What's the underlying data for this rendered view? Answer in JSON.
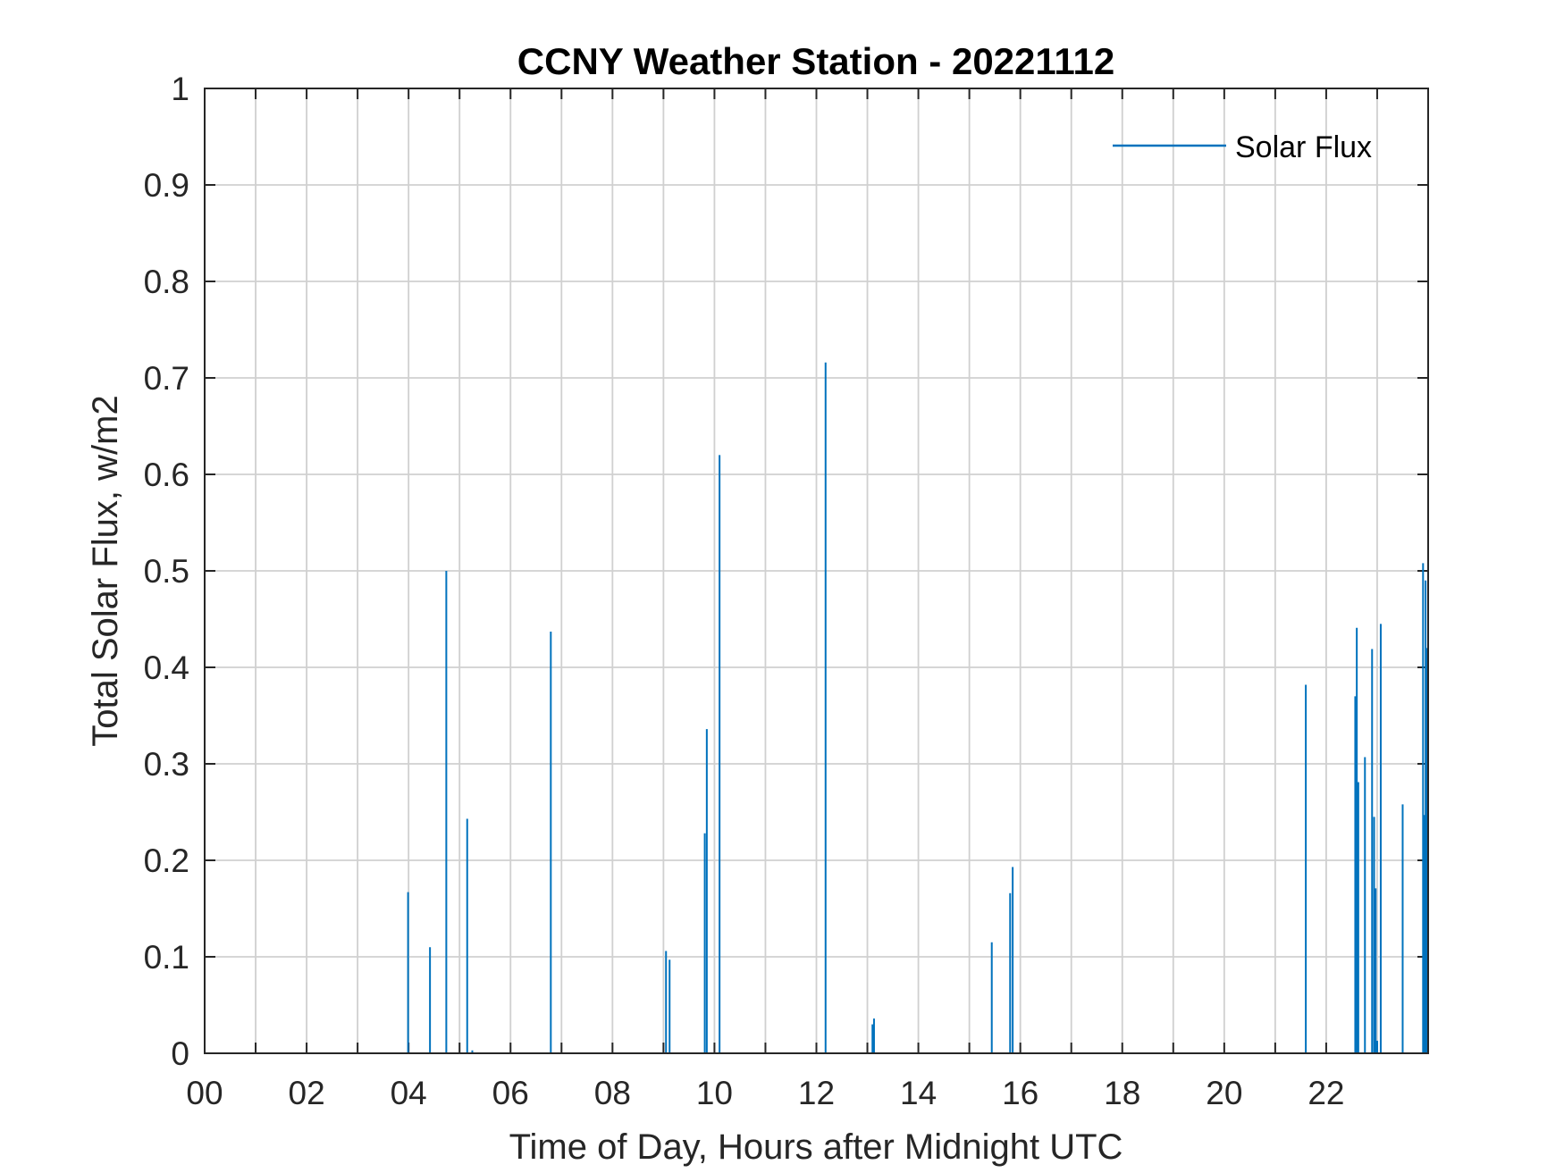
{
  "chart_data": {
    "type": "line",
    "title": "CCNY Weather Station - 20221112",
    "xlabel": "Time of Day, Hours after Midnight UTC",
    "ylabel": "Total Solar Flux, w/m2",
    "xlim": [
      0,
      24
    ],
    "ylim": [
      0,
      1
    ],
    "xticks": [
      0,
      2,
      4,
      6,
      8,
      10,
      12,
      14,
      16,
      18,
      20,
      22
    ],
    "xtick_labels": [
      "00",
      "02",
      "04",
      "06",
      "08",
      "10",
      "12",
      "14",
      "16",
      "18",
      "20",
      "22"
    ],
    "yticks": [
      0,
      0.1,
      0.2,
      0.3,
      0.4,
      0.5,
      0.6,
      0.7,
      0.8,
      0.9,
      1
    ],
    "ytick_labels": [
      "0",
      "0.1",
      "0.2",
      "0.3",
      "0.4",
      "0.5",
      "0.6",
      "0.7",
      "0.8",
      "0.9",
      "1"
    ],
    "grid": true,
    "legend_placement": "top-right",
    "series": [
      {
        "name": "Solar Flux",
        "color": "#0072BD",
        "spikes": [
          [
            3.99,
            0.167
          ],
          [
            4.42,
            0.11
          ],
          [
            4.74,
            0.5
          ],
          [
            5.15,
            0.243
          ],
          [
            5.25,
            0.003
          ],
          [
            6.79,
            0.437
          ],
          [
            9.05,
            0.106
          ],
          [
            9.12,
            0.097
          ],
          [
            9.81,
            0.228
          ],
          [
            9.85,
            0.336
          ],
          [
            10.1,
            0.62
          ],
          [
            12.18,
            0.716
          ],
          [
            13.1,
            0.03
          ],
          [
            13.13,
            0.036
          ],
          [
            15.44,
            0.115
          ],
          [
            15.8,
            0.166
          ],
          [
            15.85,
            0.193
          ],
          [
            21.6,
            0.382
          ],
          [
            22.57,
            0.37
          ],
          [
            22.6,
            0.441
          ],
          [
            22.63,
            0.281
          ],
          [
            22.76,
            0.307
          ],
          [
            22.9,
            0.419
          ],
          [
            22.94,
            0.245
          ],
          [
            22.97,
            0.171
          ],
          [
            23.0,
            0.013
          ],
          [
            23.07,
            0.445
          ],
          [
            23.5,
            0.258
          ],
          [
            23.9,
            0.508
          ],
          [
            23.93,
            0.247
          ],
          [
            23.95,
            0.49
          ],
          [
            23.97,
            0.42
          ]
        ]
      }
    ]
  }
}
